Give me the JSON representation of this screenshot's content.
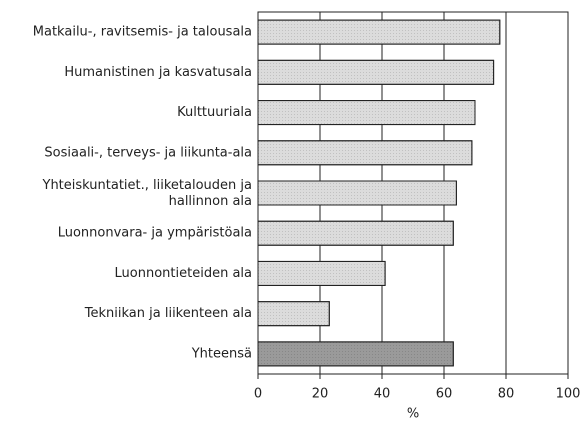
{
  "chart_data": {
    "type": "bar",
    "orientation": "horizontal",
    "categories": [
      "Matkailu-, ravitsemis- ja talousala",
      "Humanistinen ja kasvatusala",
      "Kulttuuriala",
      "Sosiaali-, terveys- ja liikunta-ala",
      "Yhteiskuntatiet., liiketalouden ja\nhallinnon ala",
      "Luonnonvara- ja ympäristöala",
      "Luonnontieteiden ala",
      "Tekniikan ja liikenteen ala",
      "Yhteensä"
    ],
    "values": [
      78,
      76,
      70,
      69,
      64,
      63,
      41,
      23,
      63
    ],
    "colors": [
      "#dcdcdc",
      "#dcdcdc",
      "#dcdcdc",
      "#dcdcdc",
      "#dcdcdc",
      "#dcdcdc",
      "#dcdcdc",
      "#dcdcdc",
      "#9a9a9a"
    ],
    "xlabel": "%",
    "xlim": [
      0,
      100
    ],
    "xticks": [
      0,
      20,
      40,
      60,
      80,
      100
    ],
    "grid": true
  }
}
